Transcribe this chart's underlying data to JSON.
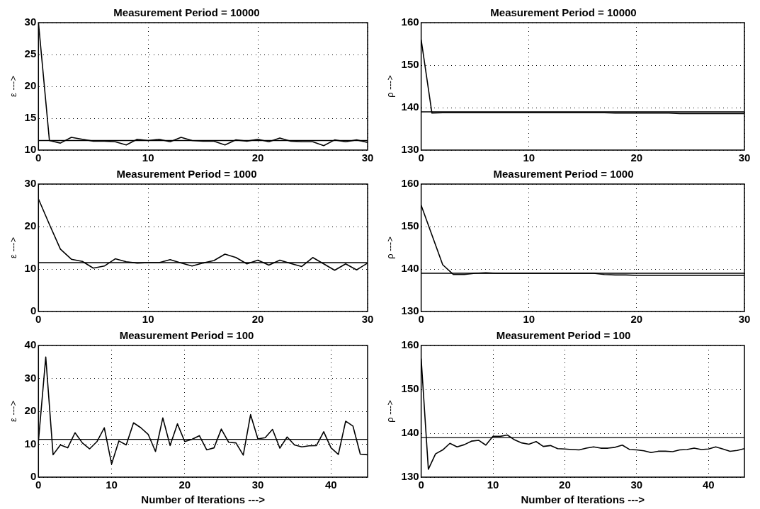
{
  "chart_data": [
    {
      "type": "line",
      "title": "Measurement Period = 10000",
      "ylabel": "ε --->",
      "x": [
        0,
        1,
        2,
        3,
        4,
        5,
        6,
        7,
        8,
        9,
        10,
        11,
        12,
        13,
        14,
        15,
        16,
        17,
        18,
        19,
        20,
        21,
        22,
        23,
        24,
        25,
        26,
        27,
        28,
        29,
        30
      ],
      "series": [
        {
          "color": "#000000",
          "values": [
            30,
            11.5,
            11.1,
            12,
            11.7,
            11.4,
            11.4,
            11.3,
            10.8,
            11.7,
            11.5,
            11.7,
            11.3,
            12,
            11.5,
            11.4,
            11.4,
            10.8,
            11.6,
            11.4,
            11.7,
            11.3,
            11.9,
            11.4,
            11.3,
            11.3,
            10.7,
            11.6,
            11.3,
            11.6,
            11.2
          ]
        }
      ],
      "ref_lines": [
        {
          "axis": "y",
          "value": 11.5,
          "color": "#000000"
        }
      ],
      "xlim": [
        0,
        30
      ],
      "xticks": [
        0,
        10,
        20,
        30
      ],
      "ylim": [
        10,
        30
      ],
      "yticks": [
        10,
        15,
        20,
        25,
        30
      ],
      "grid": true,
      "line_style": "solid",
      "marker": "none"
    },
    {
      "type": "line",
      "title": "Measurement Period = 10000",
      "ylabel": "ρ --->",
      "x": [
        0,
        1,
        2,
        3,
        4,
        5,
        6,
        7,
        8,
        9,
        10,
        11,
        12,
        13,
        14,
        15,
        16,
        17,
        18,
        19,
        20,
        21,
        22,
        23,
        24,
        25,
        26,
        27,
        28,
        29,
        30
      ],
      "series": [
        {
          "color": "#000000",
          "values": [
            156,
            138.7,
            138.8,
            138.8,
            138.8,
            138.8,
            138.8,
            138.8,
            138.8,
            138.8,
            138.8,
            138.8,
            138.8,
            138.8,
            138.8,
            138.8,
            138.8,
            138.8,
            138.7,
            138.7,
            138.7,
            138.7,
            138.7,
            138.7,
            138.6,
            138.6,
            138.6,
            138.6,
            138.6,
            138.6,
            138.6
          ]
        }
      ],
      "ref_lines": [
        {
          "axis": "y",
          "value": 139,
          "color": "#000000"
        }
      ],
      "xlim": [
        0,
        30
      ],
      "xticks": [
        0,
        10,
        20,
        30
      ],
      "ylim": [
        130,
        160
      ],
      "yticks": [
        130,
        140,
        150,
        160
      ],
      "grid": true,
      "line_style": "solid",
      "marker": "none"
    },
    {
      "type": "line",
      "title": "Measurement Period = 1000",
      "ylabel": "ε --->",
      "x": [
        0,
        1,
        2,
        3,
        4,
        5,
        6,
        7,
        8,
        9,
        10,
        11,
        12,
        13,
        14,
        15,
        16,
        17,
        18,
        19,
        20,
        21,
        22,
        23,
        24,
        25,
        26,
        27,
        28,
        29,
        30
      ],
      "series": [
        {
          "color": "#000000",
          "values": [
            26.5,
            20.5,
            14.7,
            12.3,
            11.8,
            10.2,
            10.7,
            12.4,
            11.7,
            11.4,
            11.5,
            11.5,
            12.2,
            11.4,
            10.7,
            11.4,
            12,
            13.5,
            12.7,
            11.2,
            12.1,
            10.9,
            12.1,
            11.3,
            10.6,
            12.7,
            11.2,
            9.7,
            11.2,
            9.8,
            11.4
          ]
        }
      ],
      "ref_lines": [
        {
          "axis": "y",
          "value": 11.5,
          "color": "#000000"
        }
      ],
      "xlim": [
        0,
        30
      ],
      "xticks": [
        0,
        10,
        20,
        30
      ],
      "ylim": [
        0,
        30
      ],
      "yticks": [
        0,
        10,
        20,
        30
      ],
      "grid": true,
      "line_style": "solid",
      "marker": "none"
    },
    {
      "type": "line",
      "title": "Measurement Period = 1000",
      "ylabel": "ρ --->",
      "x": [
        0,
        1,
        2,
        3,
        4,
        5,
        6,
        7,
        8,
        9,
        10,
        11,
        12,
        13,
        14,
        15,
        16,
        17,
        18,
        19,
        20,
        21,
        22,
        23,
        24,
        25,
        26,
        27,
        28,
        29,
        30
      ],
      "series": [
        {
          "color": "#000000",
          "values": [
            155,
            148,
            141,
            138.7,
            138.7,
            139,
            139.1,
            139,
            139,
            139,
            139,
            139,
            139,
            139,
            139,
            139,
            139,
            138.7,
            138.6,
            138.6,
            138.5,
            138.5,
            138.5,
            138.5,
            138.5,
            138.5,
            138.5,
            138.5,
            138.5,
            138.5,
            138.5
          ]
        }
      ],
      "ref_lines": [
        {
          "axis": "y",
          "value": 139,
          "color": "#000000"
        }
      ],
      "xlim": [
        0,
        30
      ],
      "xticks": [
        0,
        10,
        20,
        30
      ],
      "ylim": [
        130,
        160
      ],
      "yticks": [
        130,
        140,
        150,
        160
      ],
      "grid": true,
      "line_style": "solid",
      "marker": "none"
    },
    {
      "type": "line",
      "title": "Measurement Period = 100",
      "xlabel": "Number of Iterations --->",
      "ylabel": "ε --->",
      "x": [
        0,
        1,
        2,
        3,
        4,
        5,
        6,
        7,
        8,
        9,
        10,
        11,
        12,
        13,
        14,
        15,
        16,
        17,
        18,
        19,
        20,
        21,
        22,
        23,
        24,
        25,
        26,
        27,
        28,
        29,
        30,
        31,
        32,
        33,
        34,
        35,
        36,
        37,
        38,
        39,
        40,
        41,
        42,
        43,
        44,
        45
      ],
      "series": [
        {
          "color": "#000000",
          "values": [
            11,
            36.5,
            6.8,
            9.8,
            8.9,
            13.5,
            10.4,
            8.6,
            10.8,
            15,
            4,
            11,
            9.8,
            16.5,
            15,
            13,
            7.8,
            18,
            9.6,
            16.2,
            10.8,
            11.5,
            12.6,
            8.3,
            8.9,
            14.6,
            10.6,
            10.4,
            6.7,
            19,
            11.6,
            12,
            14.5,
            8.8,
            12.2,
            9.8,
            9.2,
            9.5,
            9.6,
            13.8,
            8.9,
            6.9,
            17,
            15.5,
            7,
            6.8
          ]
        }
      ],
      "ref_lines": [
        {
          "axis": "y",
          "value": 11.5,
          "color": "#000000"
        }
      ],
      "xlim": [
        0,
        45
      ],
      "xticks": [
        0,
        10,
        20,
        30,
        40
      ],
      "ylim": [
        0,
        40
      ],
      "yticks": [
        0,
        10,
        20,
        30,
        40
      ],
      "grid": true,
      "line_style": "solid",
      "marker": "none"
    },
    {
      "type": "line",
      "title": "Measurement Period = 100",
      "xlabel": "Number of Iterations --->",
      "ylabel": "ρ --->",
      "x": [
        0,
        1,
        2,
        3,
        4,
        5,
        6,
        7,
        8,
        9,
        10,
        11,
        12,
        13,
        14,
        15,
        16,
        17,
        18,
        19,
        20,
        21,
        22,
        23,
        24,
        25,
        26,
        27,
        28,
        29,
        30,
        31,
        32,
        33,
        34,
        35,
        36,
        37,
        38,
        39,
        40,
        41,
        42,
        43,
        44,
        45
      ],
      "series": [
        {
          "color": "#000000",
          "values": [
            157,
            131.8,
            135.3,
            136.2,
            137.7,
            136.9,
            137.4,
            138.2,
            138.4,
            137.3,
            139.3,
            139.3,
            139.6,
            138.5,
            137.8,
            137.5,
            138.1,
            137,
            137.2,
            136.5,
            136.4,
            136.3,
            136.2,
            136.6,
            136.9,
            136.6,
            136.6,
            136.8,
            137.3,
            136.3,
            136.2,
            136,
            135.6,
            135.9,
            135.9,
            135.8,
            136.2,
            136.3,
            136.6,
            136.3,
            136.4,
            136.9,
            136.4,
            135.9,
            136.1,
            136.5
          ]
        }
      ],
      "ref_lines": [
        {
          "axis": "y",
          "value": 139,
          "color": "#000000"
        }
      ],
      "xlim": [
        0,
        45
      ],
      "xticks": [
        0,
        10,
        20,
        30,
        40
      ],
      "ylim": [
        130,
        160
      ],
      "yticks": [
        130,
        140,
        150,
        160
      ],
      "grid": true,
      "line_style": "solid",
      "marker": "none"
    }
  ]
}
